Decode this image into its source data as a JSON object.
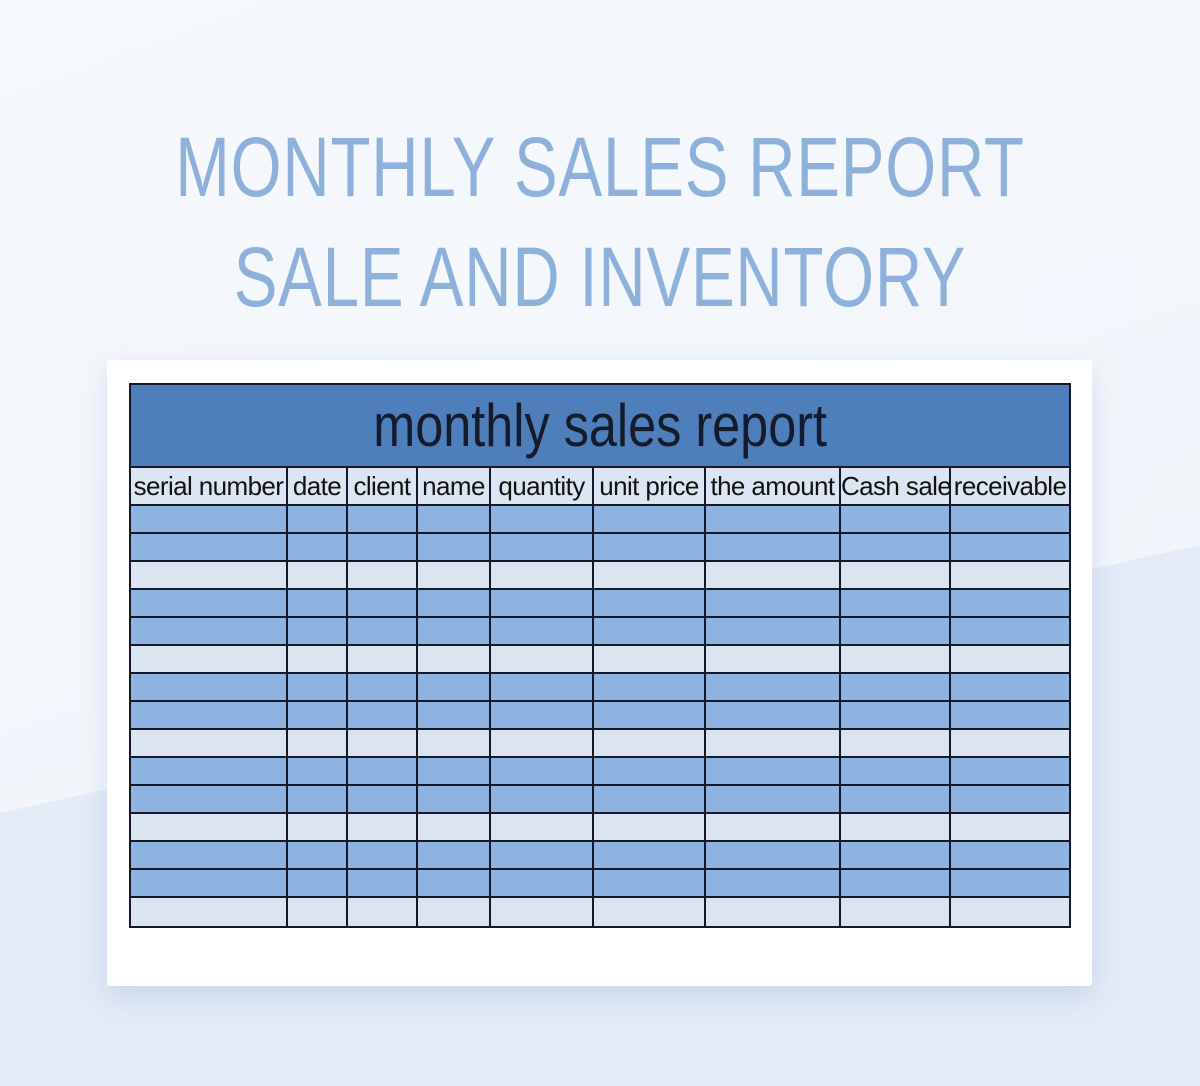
{
  "hero": {
    "title_line1": "MONTHLY SALES REPORT",
    "title_line2": "SALE AND INVENTORY"
  },
  "report_card": {
    "table_title": "monthly sales report",
    "columns": [
      "serial number",
      "date",
      "client",
      "name",
      "quantity",
      "unit price",
      "the amount",
      "Cash sale",
      "receivable"
    ],
    "rows": [
      "blue",
      "blue",
      "light",
      "blue",
      "blue",
      "light",
      "blue",
      "blue",
      "light",
      "blue",
      "blue",
      "light",
      "blue",
      "blue",
      "light"
    ],
    "cell_values": []
  },
  "colors": {
    "page_bg_top": "#f4f7fb",
    "page_bg_bottom_band": "#e3ebf7",
    "hero_text": "#8eb1dc",
    "card_bg": "#ffffff",
    "table_title_bg": "#4e7fbb",
    "table_title_text": "#141b2d",
    "column_header_bg": "#dce6f2",
    "column_header_text": "#111111",
    "row_blue": "#8fb3e1",
    "row_light": "#dbe5f1",
    "grid_line": "#15182b"
  }
}
